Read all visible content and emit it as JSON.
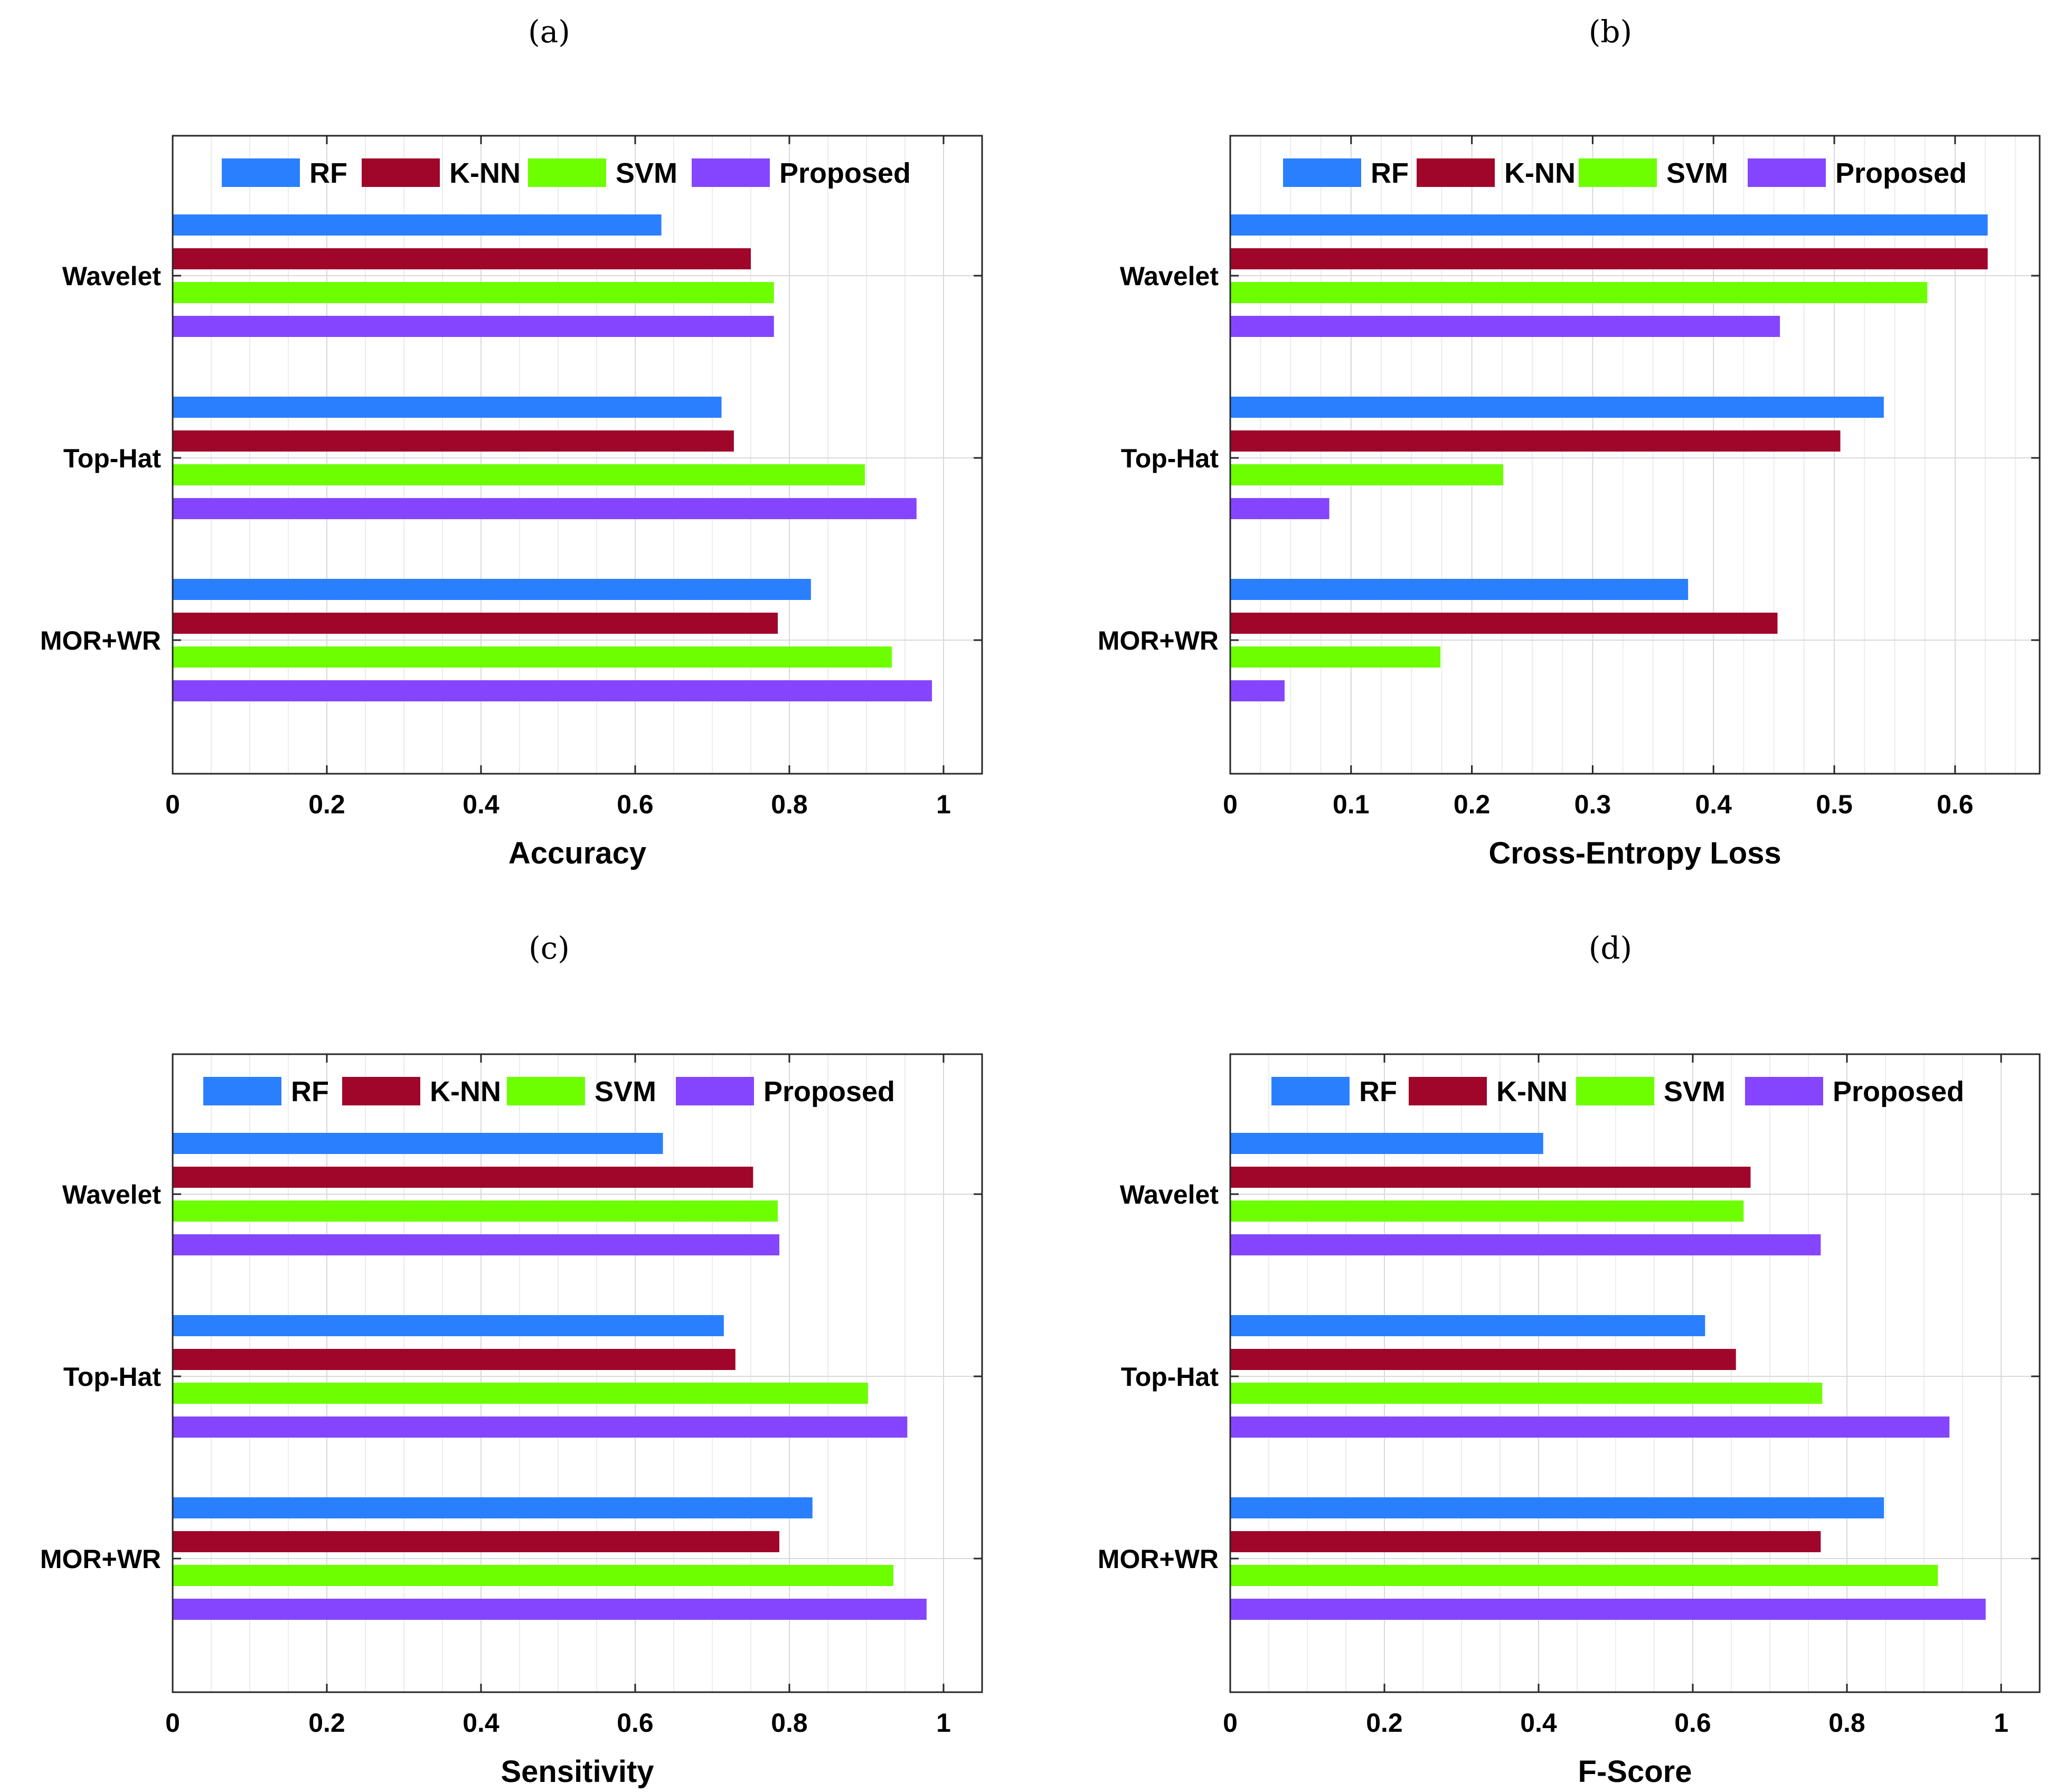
{
  "legend_position": "top",
  "colors": {
    "RF": "#2a7fff",
    "K-NN": "#a0062a",
    "SVM": "#6dff00",
    "Proposed": "#8545ff"
  },
  "chart_data": [
    {
      "type": "bar",
      "orientation": "horizontal",
      "panel_label": "(a)",
      "xlabel": "Accuracy",
      "categories": [
        "Wavelet",
        "Top-Hat",
        "MOR+WR"
      ],
      "xlim": [
        0,
        1.05
      ],
      "xticks": [
        "0",
        "0.2",
        "0.4",
        "0.6",
        "0.8",
        "1"
      ],
      "grid": true,
      "series": [
        {
          "name": "RF",
          "values": [
            0.634,
            0.712,
            0.828
          ]
        },
        {
          "name": "K-NN",
          "values": [
            0.75,
            0.728,
            0.785
          ]
        },
        {
          "name": "SVM",
          "values": [
            0.78,
            0.898,
            0.933
          ]
        },
        {
          "name": "Proposed",
          "values": [
            0.78,
            0.965,
            0.985
          ]
        }
      ]
    },
    {
      "type": "bar",
      "orientation": "horizontal",
      "panel_label": "(b)",
      "xlabel": "Cross-Entropy Loss",
      "categories": [
        "Wavelet",
        "Top-Hat",
        "MOR+WR"
      ],
      "xlim": [
        0,
        0.67
      ],
      "xticks": [
        "0",
        "0.1",
        "0.2",
        "0.3",
        "0.4",
        "0.5",
        "0.6"
      ],
      "grid": true,
      "series": [
        {
          "name": "RF",
          "values": [
            0.627,
            0.541,
            0.379
          ]
        },
        {
          "name": "K-NN",
          "values": [
            0.627,
            0.505,
            0.453
          ]
        },
        {
          "name": "SVM",
          "values": [
            0.577,
            0.226,
            0.174
          ]
        },
        {
          "name": "Proposed",
          "values": [
            0.455,
            0.082,
            0.045
          ]
        }
      ]
    },
    {
      "type": "bar",
      "orientation": "horizontal",
      "panel_label": "(c)",
      "xlabel": "Sensitivity",
      "categories": [
        "Wavelet",
        "Top-Hat",
        "MOR+WR"
      ],
      "xlim": [
        0,
        1.05
      ],
      "xticks": [
        "0",
        "0.2",
        "0.4",
        "0.6",
        "0.8",
        "1"
      ],
      "grid": true,
      "series": [
        {
          "name": "RF",
          "values": [
            0.636,
            0.715,
            0.83
          ]
        },
        {
          "name": "K-NN",
          "values": [
            0.753,
            0.73,
            0.787
          ]
        },
        {
          "name": "SVM",
          "values": [
            0.785,
            0.902,
            0.935
          ]
        },
        {
          "name": "Proposed",
          "values": [
            0.787,
            0.953,
            0.978
          ]
        }
      ]
    },
    {
      "type": "bar",
      "orientation": "horizontal",
      "panel_label": "(d)",
      "xlabel": "F-Score",
      "categories": [
        "Wavelet",
        "Top-Hat",
        "MOR+WR"
      ],
      "xlim": [
        0,
        1.05
      ],
      "xticks": [
        "0",
        "0.2",
        "0.4",
        "0.6",
        "0.8",
        "1"
      ],
      "grid": true,
      "series": [
        {
          "name": "RF",
          "values": [
            0.406,
            0.616,
            0.848
          ]
        },
        {
          "name": "K-NN",
          "values": [
            0.675,
            0.656,
            0.766
          ]
        },
        {
          "name": "SVM",
          "values": [
            0.666,
            0.768,
            0.918
          ]
        },
        {
          "name": "Proposed",
          "values": [
            0.766,
            0.933,
            0.98
          ]
        }
      ]
    }
  ]
}
